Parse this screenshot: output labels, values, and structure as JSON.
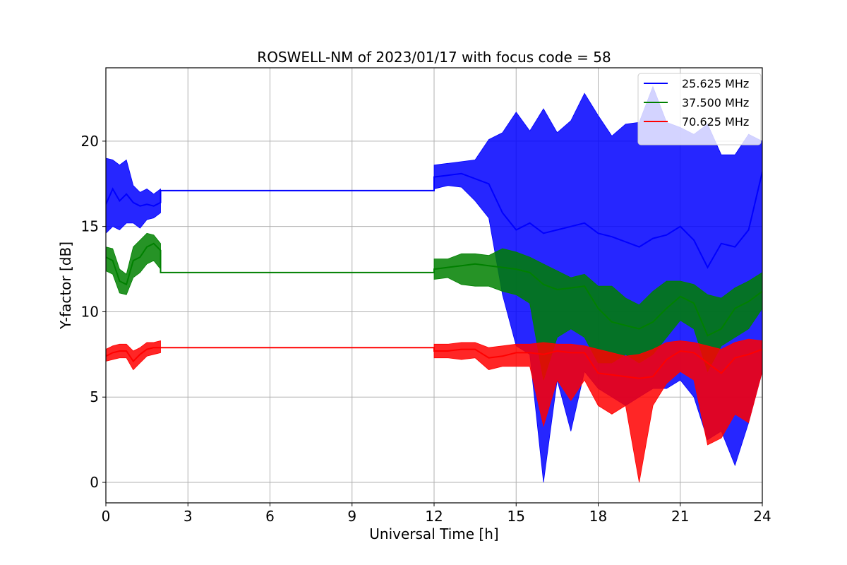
{
  "chart_data": {
    "type": "line",
    "title": "ROSWELL-NM of 2023/01/17 with focus code = 58",
    "xlabel": "Universal Time [h]",
    "ylabel": "Y-factor [dB]",
    "xlim": [
      0,
      24
    ],
    "ylim": [
      -1.2,
      24.3
    ],
    "x_ticks": [
      0,
      3,
      6,
      9,
      12,
      15,
      18,
      21,
      24
    ],
    "x_tick_labels": [
      "0",
      "3",
      "6",
      "9",
      "12",
      "15",
      "18",
      "21",
      "24"
    ],
    "y_ticks": [
      0,
      5,
      10,
      15,
      20
    ],
    "y_tick_labels": [
      "0",
      "5",
      "10",
      "15",
      "20"
    ],
    "grid": true,
    "legend_position": "top-right",
    "series": [
      {
        "name": "25.625 MHz",
        "color": "#0000ff",
        "x": [
          0,
          0.25,
          0.5,
          0.75,
          1.0,
          1.25,
          1.5,
          1.75,
          2.0,
          2.0,
          12.0,
          12.0,
          12.5,
          13.0,
          13.5,
          14.0,
          14.5,
          15.0,
          15.5,
          16.0,
          16.5,
          17.0,
          17.5,
          18.0,
          18.5,
          19.0,
          19.5,
          20.0,
          20.5,
          21.0,
          21.5,
          22.0,
          22.5,
          23.0,
          23.5,
          24.0
        ],
        "y": [
          16.3,
          17.2,
          16.5,
          16.9,
          16.4,
          16.2,
          16.3,
          16.2,
          16.4,
          17.1,
          17.1,
          17.9,
          18.0,
          18.1,
          17.8,
          17.5,
          15.8,
          14.8,
          15.2,
          14.6,
          14.8,
          15.0,
          15.2,
          14.6,
          14.4,
          14.1,
          13.8,
          14.3,
          14.5,
          15.0,
          14.2,
          12.6,
          14.0,
          13.8,
          14.8,
          18.2
        ],
        "envelope_min": [
          14.6,
          15.0,
          14.8,
          15.2,
          15.2,
          14.9,
          15.4,
          15.5,
          15.8,
          17.1,
          17.1,
          17.2,
          17.4,
          17.3,
          16.5,
          15.5,
          11.0,
          8.0,
          7.5,
          0.0,
          6.0,
          3.0,
          6.5,
          5.5,
          5.0,
          4.5,
          5.0,
          5.5,
          5.5,
          6.0,
          5.0,
          2.5,
          3.0,
          1.0,
          3.5,
          6.5
        ],
        "envelope_max": [
          19.0,
          18.9,
          18.6,
          18.9,
          17.4,
          17.0,
          17.2,
          16.9,
          17.2,
          17.1,
          17.1,
          18.6,
          18.7,
          18.8,
          18.9,
          20.1,
          20.5,
          21.7,
          20.6,
          21.9,
          20.5,
          21.2,
          22.8,
          21.5,
          20.3,
          21.0,
          21.1,
          23.2,
          21.1,
          20.8,
          20.4,
          21.0,
          19.2,
          19.2,
          20.4,
          20.0
        ]
      },
      {
        "name": "37.500 MHz",
        "color": "#008000",
        "x": [
          0,
          0.25,
          0.5,
          0.75,
          1.0,
          1.25,
          1.5,
          1.75,
          2.0,
          2.0,
          12.0,
          12.0,
          12.5,
          13.0,
          13.5,
          14.0,
          14.5,
          15.0,
          15.5,
          16.0,
          16.5,
          17.0,
          17.5,
          18.0,
          18.5,
          19.0,
          19.5,
          20.0,
          20.5,
          21.0,
          21.5,
          22.0,
          22.5,
          23.0,
          23.5,
          24.0
        ],
        "y": [
          13.2,
          13.0,
          11.8,
          11.6,
          13.0,
          13.2,
          13.8,
          14.0,
          13.6,
          12.3,
          12.3,
          12.5,
          12.6,
          12.7,
          12.8,
          12.7,
          12.6,
          12.5,
          12.3,
          11.6,
          11.3,
          11.4,
          11.5,
          10.2,
          9.4,
          9.2,
          9.0,
          9.4,
          10.2,
          10.9,
          10.5,
          8.6,
          9.0,
          10.2,
          10.6,
          11.2
        ],
        "envelope_min": [
          12.4,
          12.2,
          11.1,
          11.0,
          12.0,
          12.3,
          12.8,
          13.0,
          12.5,
          12.3,
          12.3,
          11.9,
          12.0,
          11.6,
          11.5,
          11.5,
          11.2,
          11.0,
          10.5,
          6.0,
          8.5,
          9.0,
          8.5,
          7.0,
          7.0,
          7.5,
          7.0,
          7.5,
          8.5,
          9.5,
          9.0,
          6.5,
          8.0,
          8.5,
          9.0,
          10.2
        ],
        "envelope_max": [
          13.8,
          13.7,
          12.5,
          12.2,
          13.8,
          14.2,
          14.6,
          14.5,
          14.0,
          12.3,
          12.3,
          13.1,
          13.1,
          13.4,
          13.4,
          13.3,
          13.7,
          13.5,
          13.2,
          12.8,
          12.4,
          12.0,
          12.2,
          11.5,
          11.5,
          10.8,
          10.4,
          11.2,
          11.8,
          11.8,
          11.6,
          11.0,
          10.8,
          11.4,
          11.8,
          12.3
        ]
      },
      {
        "name": "70.625 MHz",
        "color": "#ff0000",
        "x": [
          0,
          0.25,
          0.5,
          0.75,
          1.0,
          1.25,
          1.5,
          1.75,
          2.0,
          2.0,
          12.0,
          12.0,
          12.5,
          13.0,
          13.5,
          14.0,
          14.5,
          15.0,
          15.5,
          16.0,
          16.5,
          17.0,
          17.5,
          18.0,
          18.5,
          19.0,
          19.5,
          20.0,
          20.5,
          21.0,
          21.5,
          22.0,
          22.5,
          23.0,
          23.5,
          24.0
        ],
        "y": [
          7.4,
          7.6,
          7.7,
          7.7,
          7.1,
          7.5,
          7.8,
          7.9,
          7.9,
          7.9,
          7.9,
          7.7,
          7.7,
          7.8,
          7.8,
          7.3,
          7.4,
          7.6,
          7.6,
          7.5,
          7.7,
          7.6,
          7.6,
          6.4,
          6.3,
          6.2,
          6.1,
          6.2,
          7.2,
          7.7,
          7.6,
          7.0,
          6.4,
          7.3,
          7.5,
          7.8
        ],
        "envelope_min": [
          7.1,
          7.2,
          7.3,
          7.3,
          6.6,
          7.0,
          7.4,
          7.5,
          7.6,
          7.9,
          7.9,
          7.3,
          7.3,
          7.2,
          7.3,
          6.6,
          6.8,
          6.8,
          6.8,
          3.3,
          6.0,
          4.8,
          6.0,
          4.5,
          4.0,
          4.5,
          0.0,
          4.5,
          5.8,
          6.5,
          6.0,
          2.2,
          2.6,
          4.0,
          3.5,
          6.5
        ],
        "envelope_max": [
          7.8,
          8.0,
          8.1,
          8.1,
          7.7,
          7.9,
          8.2,
          8.2,
          8.3,
          7.9,
          7.9,
          8.1,
          8.1,
          8.2,
          8.2,
          7.9,
          8.0,
          8.1,
          8.1,
          8.2,
          8.1,
          8.1,
          8.0,
          7.8,
          7.6,
          7.4,
          7.5,
          7.8,
          8.2,
          8.3,
          8.2,
          8.0,
          7.8,
          8.2,
          8.4,
          8.3
        ]
      }
    ]
  }
}
